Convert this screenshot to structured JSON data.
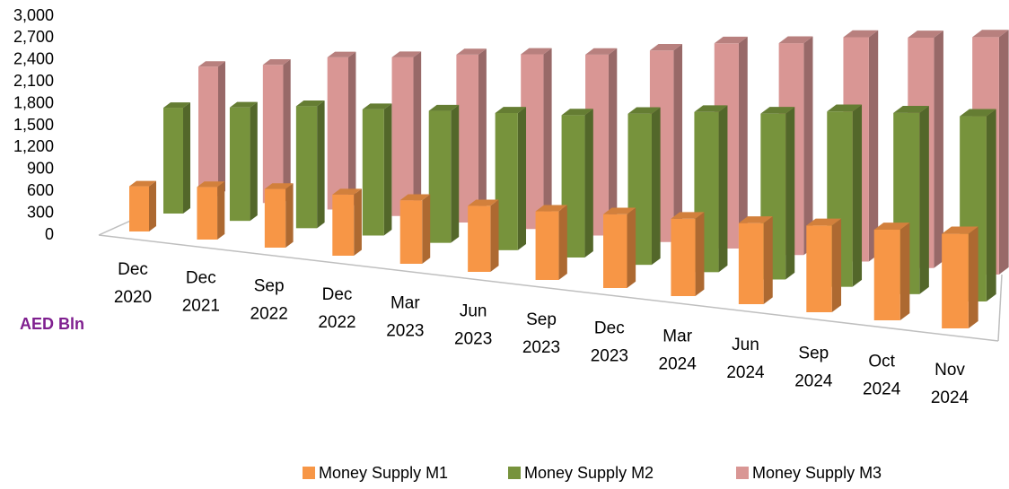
{
  "chart_data": {
    "type": "bar3d",
    "axis_label": "AED Bln",
    "categories": [
      "Dec 2020",
      "Dec 2021",
      "Sep 2022",
      "Dec 2022",
      "Mar 2023",
      "Jun 2023",
      "Sep 2023",
      "Dec 2023",
      "Mar 2024",
      "Jun 2024",
      "Sep 2024",
      "Oct 2024",
      "Nov 2024"
    ],
    "series": [
      {
        "name": "Money Supply M1",
        "color": "#f79646",
        "values": [
          620,
          700,
          760,
          770,
          780,
          790,
          800,
          840,
          860,
          880,
          920,
          940,
          960
        ]
      },
      {
        "name": "Money Supply M2",
        "color": "#77933c",
        "values": [
          1450,
          1510,
          1580,
          1590,
          1620,
          1640,
          1660,
          1720,
          1780,
          1800,
          1860,
          1880,
          1880
        ]
      },
      {
        "name": "Money Supply M3",
        "color": "#d99694",
        "values": [
          1780,
          1840,
          1970,
          2000,
          2060,
          2090,
          2110,
          2180,
          2280,
          2300,
          2380,
          2390,
          2410
        ]
      }
    ],
    "ylim": [
      0,
      3000
    ],
    "yticks": [
      0,
      300,
      600,
      900,
      {
        "value": 1200,
        "label": "1,200"
      },
      {
        "value": 1500,
        "label": "1,500"
      },
      {
        "value": 1800,
        "label": "1,800"
      },
      {
        "value": 2100,
        "label": "2,100"
      },
      {
        "value": 2400,
        "label": "2,400"
      },
      {
        "value": 2700,
        "label": "2,700"
      },
      {
        "value": 3000,
        "label": "3,000"
      }
    ],
    "grid": false
  }
}
